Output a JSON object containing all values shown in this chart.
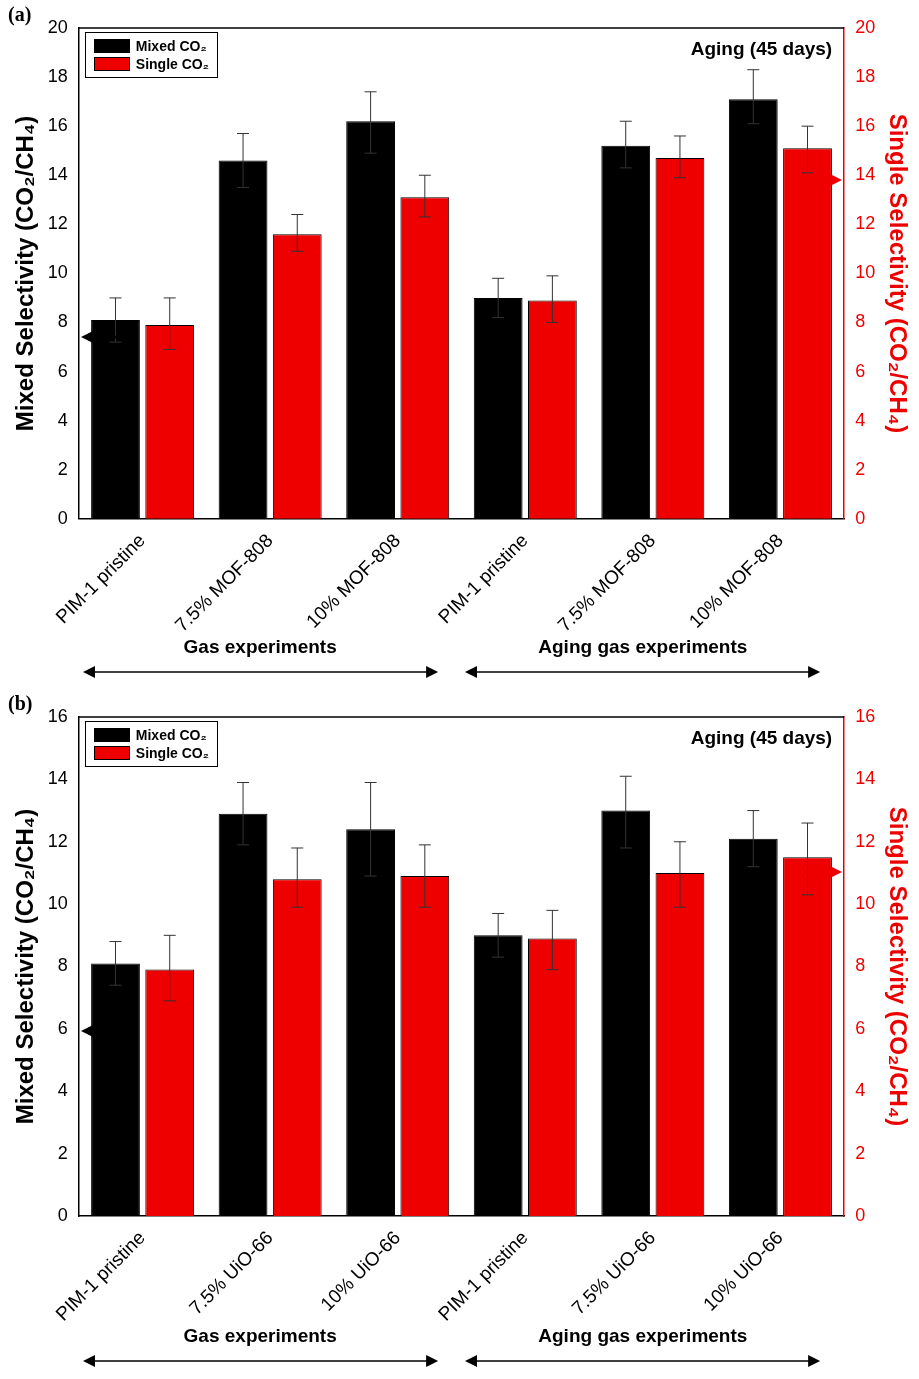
{
  "chart_data": [
    {
      "type": "bar",
      "title": "(a)",
      "ylabel": "Mixed Selectivity (CO₂/CH₄)",
      "y2label": "Single Selectivity (CO₂/CH₄)",
      "categories": [
        "PIM-1 pristine",
        "7.5% MOF-808",
        "10% MOF-808",
        "PIM-1 pristine",
        "7.5% MOF-808",
        "10% MOF-808"
      ],
      "series": [
        {
          "name": "Mixed CO₂",
          "color": "#000000",
          "values": [
            8.1,
            14.6,
            16.2,
            9.0,
            15.2,
            17.1
          ],
          "errors": [
            [
              7.2,
              9.0
            ],
            [
              13.5,
              15.7
            ],
            [
              14.9,
              17.4
            ],
            [
              8.2,
              9.8
            ],
            [
              14.3,
              16.2
            ],
            [
              16.1,
              18.3
            ]
          ]
        },
        {
          "name": "Single CO₂",
          "color": "#ee0000",
          "axis": "y2",
          "values": [
            7.9,
            11.6,
            13.1,
            8.9,
            14.7,
            15.1
          ],
          "errors": [
            [
              6.9,
              9.0
            ],
            [
              10.9,
              12.4
            ],
            [
              12.3,
              14.0
            ],
            [
              8.0,
              9.9
            ],
            [
              13.9,
              15.6
            ],
            [
              14.1,
              16.0
            ]
          ]
        }
      ],
      "ylim": [
        0,
        20
      ],
      "yticks": [
        0,
        2,
        4,
        6,
        8,
        10,
        12,
        14,
        16,
        18,
        20
      ],
      "y2lim": [
        0,
        20
      ],
      "y2ticks": [
        0,
        2,
        4,
        6,
        8,
        10,
        12,
        14,
        16,
        18,
        20
      ],
      "annotations": [
        "Aging (45 days)",
        "Gas experiments",
        "Aging gas experiments"
      ],
      "legend": "top left",
      "grid": false
    },
    {
      "type": "bar",
      "title": "(b)",
      "ylabel": "Mixed Selectivity (CO₂/CH₄)",
      "y2label": "Single Selectivity (CO₂/CH₄)",
      "categories": [
        "PIM-1 pristine",
        "7.5% UiO-66",
        "10% UiO-66",
        "PIM-1 pristine",
        "7.5% UiO-66",
        "10% UiO-66"
      ],
      "series": [
        {
          "name": "Mixed CO₂",
          "color": "#000000",
          "values": [
            8.1,
            12.9,
            12.4,
            9.0,
            13.0,
            12.1
          ],
          "errors": [
            [
              7.4,
              8.8
            ],
            [
              11.9,
              13.9
            ],
            [
              10.9,
              13.9
            ],
            [
              8.3,
              9.7
            ],
            [
              11.8,
              14.1
            ],
            [
              11.2,
              13.0
            ]
          ]
        },
        {
          "name": "Single CO₂",
          "color": "#ee0000",
          "axis": "y2",
          "values": [
            7.9,
            10.8,
            10.9,
            8.9,
            11.0,
            11.5
          ],
          "errors": [
            [
              6.9,
              9.0
            ],
            [
              9.9,
              11.8
            ],
            [
              9.9,
              11.9
            ],
            [
              7.9,
              9.8
            ],
            [
              9.9,
              12.0
            ],
            [
              10.3,
              12.6
            ]
          ]
        }
      ],
      "ylim": [
        0,
        16
      ],
      "yticks": [
        0,
        2,
        4,
        6,
        8,
        10,
        12,
        14,
        16
      ],
      "y2lim": [
        0,
        16
      ],
      "y2ticks": [
        0,
        2,
        4,
        6,
        8,
        10,
        12,
        14,
        16
      ],
      "annotations": [
        "Aging (45 days)",
        "Gas experiments",
        "Aging gas experiments"
      ],
      "legend": "top left",
      "grid": false
    }
  ]
}
